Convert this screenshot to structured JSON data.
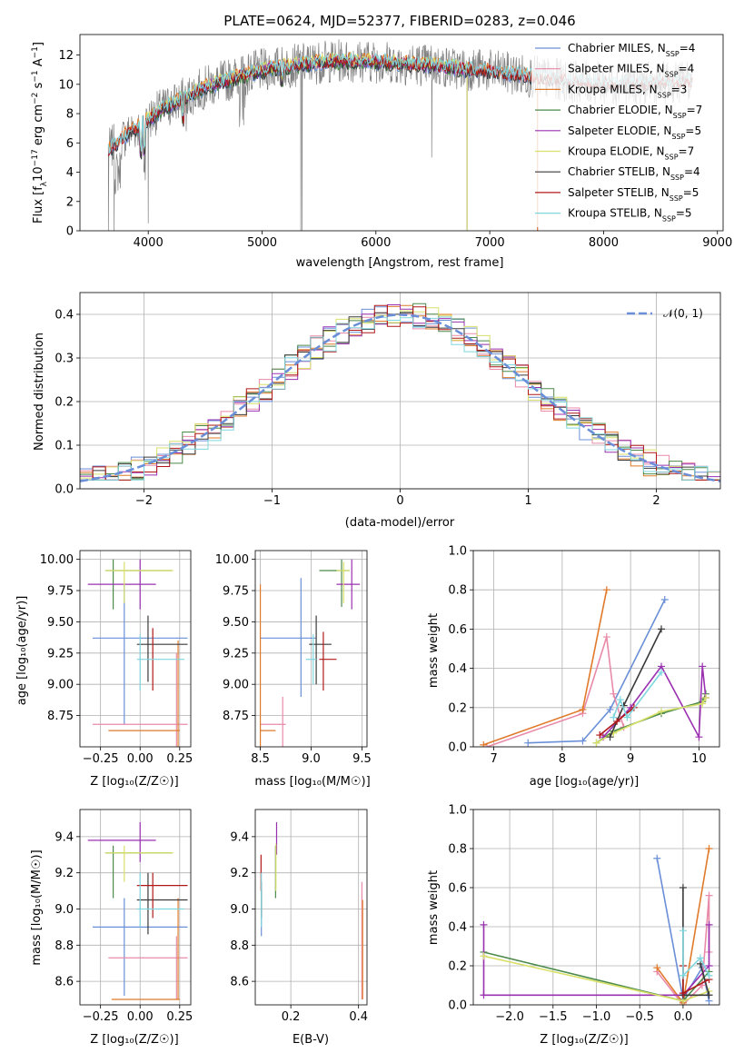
{
  "colors": {
    "Chabrier MILES": "#6a8fd8",
    "Salpeter MILES": "#e88aa8",
    "Kroupa MILES": "#e07a2a",
    "Chabrier ELODIE": "#4b8a4b",
    "Salpeter ELODIE": "#9a30b0",
    "Kroupa ELODIE": "#d8e06a",
    "Chabrier STELIB": "#3a3a3a",
    "Salpeter STELIB": "#b01818",
    "Kroupa STELIB": "#7fd6de",
    "data": "#808080"
  },
  "chart_data": [
    {
      "id": "spectrum",
      "type": "line",
      "title": "PLATE=0624, MJD=52377, FIBERID=0283, z=0.046",
      "xlabel": "wavelength [Angstrom, rest frame]",
      "ylabel": "Flux [f$_\\lambda$10$^{-17}$ erg cm$^{-2}$ s$^{-1}$ A$^{-1}$]",
      "ylabel_parts": [
        "Flux [f",
        "λ",
        "10",
        "−17",
        " erg cm",
        "−2",
        " s",
        "−1",
        " A",
        "−1",
        "]"
      ],
      "xlim": [
        3400,
        9050
      ],
      "ylim": [
        0,
        13.4
      ],
      "xticks": [
        4000,
        5000,
        6000,
        7000,
        8000,
        9000
      ],
      "yticks": [
        0,
        2,
        4,
        6,
        8,
        10,
        12
      ],
      "legend": [
        {
          "name": "Chabrier MILES",
          "n": "4"
        },
        {
          "name": "Salpeter MILES",
          "n": "4"
        },
        {
          "name": "Kroupa MILES",
          "n": "3"
        },
        {
          "name": "Chabrier ELODIE",
          "n": "7"
        },
        {
          "name": "Salpeter ELODIE",
          "n": "5"
        },
        {
          "name": "Kroupa ELODIE",
          "n": "7"
        },
        {
          "name": "Chabrier STELIB",
          "n": "4"
        },
        {
          "name": "Salpeter STELIB",
          "n": "5"
        },
        {
          "name": "Kroupa STELIB",
          "n": "5"
        }
      ],
      "legend_sub": "SSP",
      "continuum": {
        "x": [
          3650,
          3800,
          3950,
          4100,
          4300,
          4500,
          4700,
          4900,
          5100,
          5300,
          5500,
          5700,
          5900,
          6100,
          6300,
          6500,
          6700,
          6900,
          7100,
          7300,
          7500,
          7700,
          7900,
          8100,
          8300,
          8500,
          8780
        ],
        "y": [
          5.5,
          6.5,
          7.3,
          8.2,
          9.0,
          9.8,
          10.3,
          10.8,
          11.1,
          11.3,
          11.5,
          11.6,
          11.6,
          11.5,
          11.4,
          11.3,
          11.1,
          11.0,
          10.8,
          10.6,
          10.4,
          10.2,
          10.1,
          10.0,
          10.0,
          10.1,
          10.2
        ]
      },
      "model_ranges": {
        "Chabrier MILES": [
          3650,
          7420
        ],
        "Salpeter MILES": [
          3650,
          7420
        ],
        "Kroupa MILES": [
          3650,
          7420
        ],
        "Chabrier ELODIE": [
          3900,
          6800
        ],
        "Salpeter ELODIE": [
          3900,
          6800
        ],
        "Kroupa ELODIE": [
          3900,
          6800
        ],
        "Chabrier STELIB": [
          3650,
          8780
        ],
        "Salpeter STELIB": [
          3650,
          8780
        ],
        "Kroupa STELIB": [
          3650,
          8780
        ]
      }
    },
    {
      "id": "residuals",
      "type": "line",
      "xlabel": "(data-model)/error",
      "ylabel": "Normed distribution",
      "xlim": [
        -2.5,
        2.5
      ],
      "ylim": [
        0,
        0.45
      ],
      "xticks": [
        -2,
        -1,
        0,
        1,
        2
      ],
      "xticklabels": [
        "−2",
        "−1",
        "0",
        "1",
        "2"
      ],
      "yticks": [
        0.0,
        0.1,
        0.2,
        0.3,
        0.4
      ],
      "yticklabels": [
        "0.0",
        "0.1",
        "0.2",
        "0.3",
        "0.4"
      ],
      "legend_label": "𝒩(0, 1)",
      "reference": "normal(0,1)"
    },
    {
      "id": "age_vs_Z",
      "type": "scatter",
      "xlabel": "Z [log₁₀(Z/Z☉)]",
      "ylabel": "age  [log₁₀(age/yr)]",
      "xlim": [
        -0.38,
        0.32
      ],
      "ylim": [
        8.5,
        10.07
      ],
      "xticks": [
        -0.25,
        0.0,
        0.25
      ],
      "xticklabels": [
        "−0.25",
        "0.00",
        "0.25"
      ],
      "yticks": [
        8.75,
        9.0,
        9.25,
        9.5,
        9.75,
        10.0
      ],
      "yticklabels": [
        "8.75",
        "9.00",
        "9.25",
        "9.50",
        "9.75",
        "10.00"
      ],
      "points": [
        {
          "m": "Chabrier MILES",
          "x": -0.1,
          "xlo": -0.3,
          "xhi": 0.3,
          "y": 9.37,
          "ylo": 8.68,
          "yhi": 9.8
        },
        {
          "m": "Salpeter MILES",
          "x": 0.23,
          "xlo": -0.3,
          "xhi": 0.3,
          "y": 8.68,
          "ylo": 8.5,
          "yhi": 9.25
        },
        {
          "m": "Kroupa MILES",
          "x": 0.24,
          "xlo": -0.2,
          "xhi": 0.25,
          "y": 8.63,
          "ylo": 8.5,
          "yhi": 9.35
        },
        {
          "m": "Chabrier ELODIE",
          "x": -0.17,
          "xlo": -0.22,
          "xhi": 0.2,
          "y": 9.91,
          "ylo": 9.6,
          "yhi": 10.0
        },
        {
          "m": "Salpeter ELODIE",
          "x": 0.0,
          "xlo": -0.33,
          "xhi": 0.1,
          "y": 9.8,
          "ylo": 9.6,
          "yhi": 10.0
        },
        {
          "m": "Kroupa ELODIE",
          "x": -0.1,
          "xlo": -0.22,
          "xhi": 0.21,
          "y": 9.91,
          "ylo": 9.65,
          "yhi": 9.98
        },
        {
          "m": "Chabrier STELIB",
          "x": 0.05,
          "xlo": -0.02,
          "xhi": 0.3,
          "y": 9.32,
          "ylo": 9.02,
          "yhi": 9.55
        },
        {
          "m": "Salpeter STELIB",
          "x": 0.08,
          "xlo": 0.08,
          "xhi": 0.08,
          "y": 9.25,
          "ylo": 8.95,
          "yhi": 9.45
        },
        {
          "m": "Kroupa STELIB",
          "x": 0.0,
          "xlo": -0.02,
          "xhi": 0.28,
          "y": 9.2,
          "ylo": 8.95,
          "yhi": 9.4
        }
      ]
    },
    {
      "id": "age_vs_mass",
      "type": "scatter",
      "xlabel": "mass [log₁₀(M/M☉)]",
      "xlim": [
        8.45,
        9.55
      ],
      "ylim": [
        8.5,
        10.07
      ],
      "xticks": [
        8.5,
        9.0,
        9.5
      ],
      "xticklabels": [
        "8.5",
        "9.0",
        "9.5"
      ],
      "yticks": [
        8.75,
        9.0,
        9.25,
        9.5,
        9.75,
        10.0
      ],
      "yticklabels": [
        "8.75",
        "9.00",
        "9.25",
        "9.50",
        "9.75",
        "10.00"
      ],
      "points": [
        {
          "m": "Chabrier MILES",
          "x": 8.9,
          "xlo": 8.5,
          "xhi": 9.05,
          "y": 9.37,
          "ylo": 8.9,
          "yhi": 9.85
        },
        {
          "m": "Salpeter MILES",
          "x": 8.72,
          "xlo": 8.5,
          "xhi": 8.75,
          "y": 8.68,
          "ylo": 8.5,
          "yhi": 8.9
        },
        {
          "m": "Kroupa MILES",
          "x": 8.5,
          "xlo": 8.5,
          "xhi": 8.65,
          "y": 8.63,
          "ylo": 8.5,
          "yhi": 9.8
        },
        {
          "m": "Chabrier ELODIE",
          "x": 9.3,
          "xlo": 9.08,
          "xhi": 9.38,
          "y": 9.91,
          "ylo": 9.62,
          "yhi": 10.0
        },
        {
          "m": "Salpeter ELODIE",
          "x": 9.4,
          "xlo": 9.25,
          "xhi": 9.48,
          "y": 9.8,
          "ylo": 9.6,
          "yhi": 10.0
        },
        {
          "m": "Kroupa ELODIE",
          "x": 9.32,
          "xlo": 9.25,
          "xhi": 9.38,
          "y": 9.91,
          "ylo": 9.65,
          "yhi": 9.98
        },
        {
          "m": "Chabrier STELIB",
          "x": 9.05,
          "xlo": 8.98,
          "xhi": 9.2,
          "y": 9.32,
          "ylo": 9.0,
          "yhi": 9.55
        },
        {
          "m": "Salpeter STELIB",
          "x": 9.12,
          "xlo": 9.08,
          "xhi": 9.25,
          "y": 9.2,
          "ylo": 8.95,
          "yhi": 9.42
        },
        {
          "m": "Kroupa STELIB",
          "x": 9.02,
          "xlo": 8.95,
          "xhi": 9.05,
          "y": 9.2,
          "ylo": 9.0,
          "yhi": 9.4
        }
      ]
    },
    {
      "id": "weight_vs_age",
      "type": "line",
      "xlabel": "age  [log₁₀(age/yr)]",
      "ylabel": "mass weight",
      "xlim": [
        6.7,
        10.3
      ],
      "ylim": [
        0,
        1.0
      ],
      "xticks": [
        7,
        8,
        9,
        10
      ],
      "xticklabels": [
        "7",
        "8",
        "9",
        "10"
      ],
      "yticks": [
        0.0,
        0.2,
        0.4,
        0.6,
        0.8,
        1.0
      ],
      "yticklabels": [
        "0.0",
        "0.2",
        "0.4",
        "0.6",
        "0.8",
        "1.0"
      ],
      "series": [
        {
          "m": "Chabrier MILES",
          "x": [
            7.5,
            8.3,
            8.7,
            9.5
          ],
          "y": [
            0.02,
            0.03,
            0.19,
            0.75
          ]
        },
        {
          "m": "Salpeter MILES",
          "x": [
            6.9,
            8.3,
            8.65,
            8.75,
            8.9
          ],
          "y": [
            0.0,
            0.17,
            0.56,
            0.27,
            0.1
          ]
        },
        {
          "m": "Kroupa MILES",
          "x": [
            6.85,
            8.3,
            8.65
          ],
          "y": [
            0.01,
            0.19,
            0.8
          ]
        },
        {
          "m": "Chabrier ELODIE",
          "x": [
            8.5,
            8.75,
            9.45,
            10.05,
            10.1
          ],
          "y": [
            0.02,
            0.08,
            0.17,
            0.23,
            0.27
          ]
        },
        {
          "m": "Salpeter ELODIE",
          "x": [
            8.6,
            9.0,
            9.45,
            10.0,
            10.05,
            10.1
          ],
          "y": [
            0.05,
            0.2,
            0.41,
            0.05,
            0.41,
            0.25
          ]
        },
        {
          "m": "Kroupa ELODIE",
          "x": [
            8.5,
            8.75,
            9.45,
            10.05,
            10.1
          ],
          "y": [
            0.02,
            0.07,
            0.18,
            0.22,
            0.25
          ]
        },
        {
          "m": "Chabrier STELIB",
          "x": [
            8.7,
            8.9,
            9.45
          ],
          "y": [
            0.05,
            0.21,
            0.6
          ]
        },
        {
          "m": "Salpeter STELIB",
          "x": [
            8.55,
            8.8,
            9.05
          ],
          "y": [
            0.06,
            0.13,
            0.2
          ]
        },
        {
          "m": "Kroupa STELIB",
          "x": [
            8.75,
            8.85,
            8.95,
            9.45
          ],
          "y": [
            0.15,
            0.24,
            0.15,
            0.38
          ]
        }
      ]
    },
    {
      "id": "mass_vs_Z",
      "type": "scatter",
      "xlabel": "Z [log₁₀(Z/Z☉)]",
      "ylabel": "mass [log₁₀(M/M☉)]",
      "xlim": [
        -0.38,
        0.32
      ],
      "ylim": [
        8.47,
        9.55
      ],
      "xticks": [
        -0.25,
        0.0,
        0.25
      ],
      "xticklabels": [
        "−0.25",
        "0.00",
        "0.25"
      ],
      "yticks": [
        8.6,
        8.8,
        9.0,
        9.2,
        9.4
      ],
      "yticklabels": [
        "8.6",
        "8.8",
        "9.0",
        "9.2",
        "9.4"
      ],
      "points": [
        {
          "m": "Chabrier MILES",
          "x": -0.1,
          "xlo": -0.3,
          "xhi": 0.3,
          "y": 8.9,
          "ylo": 8.52,
          "yhi": 9.06
        },
        {
          "m": "Salpeter MILES",
          "x": 0.23,
          "xlo": -0.2,
          "xhi": 0.3,
          "y": 8.73,
          "ylo": 8.5,
          "yhi": 8.85
        },
        {
          "m": "Kroupa MILES",
          "x": 0.24,
          "xlo": -0.18,
          "xhi": 0.25,
          "y": 8.5,
          "ylo": 8.5,
          "yhi": 9.06
        },
        {
          "m": "Chabrier ELODIE",
          "x": -0.17,
          "xlo": -0.22,
          "xhi": 0.2,
          "y": 9.31,
          "ylo": 9.06,
          "yhi": 9.35
        },
        {
          "m": "Salpeter ELODIE",
          "x": 0.0,
          "xlo": -0.33,
          "xhi": 0.1,
          "y": 9.38,
          "ylo": 9.26,
          "yhi": 9.48
        },
        {
          "m": "Kroupa ELODIE",
          "x": -0.1,
          "xlo": -0.22,
          "xhi": 0.21,
          "y": 9.31,
          "ylo": 9.15,
          "yhi": 9.35
        },
        {
          "m": "Chabrier STELIB",
          "x": 0.05,
          "xlo": -0.02,
          "xhi": 0.3,
          "y": 9.05,
          "ylo": 8.86,
          "yhi": 9.2
        },
        {
          "m": "Salpeter STELIB",
          "x": 0.08,
          "xlo": -0.02,
          "xhi": 0.3,
          "y": 9.13,
          "ylo": 8.95,
          "yhi": 9.2
        },
        {
          "m": "Kroupa STELIB",
          "x": 0.0,
          "xlo": -0.02,
          "xhi": 0.28,
          "y": 9.0,
          "ylo": 8.9,
          "yhi": 9.2
        }
      ]
    },
    {
      "id": "mass_vs_ebv",
      "type": "scatter",
      "xlabel": "E(B-V)",
      "xlim": [
        0.095,
        0.425
      ],
      "ylim": [
        8.47,
        9.55
      ],
      "xticks": [
        0.2,
        0.4
      ],
      "xticklabels": [
        "0.2",
        "0.4"
      ],
      "yticks": [
        8.6,
        8.8,
        9.0,
        9.2,
        9.4
      ],
      "yticklabels": [
        "8.6",
        "8.8",
        "9.0",
        "9.2",
        "9.4"
      ],
      "points": [
        {
          "m": "Chabrier MILES",
          "x": 0.113,
          "y": 8.9,
          "ylo": 8.85,
          "yhi": 9.1
        },
        {
          "m": "Salpeter MILES",
          "x": 0.41,
          "y": 8.73,
          "ylo": 8.5,
          "yhi": 9.15
        },
        {
          "m": "Kroupa MILES",
          "x": 0.412,
          "y": 8.5,
          "ylo": 8.5,
          "yhi": 9.05
        },
        {
          "m": "Chabrier ELODIE",
          "x": 0.155,
          "y": 9.31,
          "ylo": 9.06,
          "yhi": 9.35
        },
        {
          "m": "Salpeter ELODIE",
          "x": 0.158,
          "y": 9.38,
          "ylo": 9.3,
          "yhi": 9.48
        },
        {
          "m": "Kroupa ELODIE",
          "x": 0.156,
          "y": 9.31,
          "ylo": 9.1,
          "yhi": 9.36
        },
        {
          "m": "Chabrier STELIB",
          "x": 0.113,
          "y": 9.05,
          "ylo": 8.95,
          "yhi": 9.15
        },
        {
          "m": "Salpeter STELIB",
          "x": 0.112,
          "y": 9.13,
          "ylo": 9.1,
          "yhi": 9.3
        },
        {
          "m": "Kroupa STELIB",
          "x": 0.113,
          "y": 9.0,
          "ylo": 8.9,
          "yhi": 9.2
        }
      ]
    },
    {
      "id": "weight_vs_Z",
      "type": "line",
      "xlabel": "Z [log₁₀(Z/Z☉)]",
      "ylabel": "mass weight",
      "xlim": [
        -2.42,
        0.42
      ],
      "ylim": [
        0,
        1.0
      ],
      "xticks": [
        -2.0,
        -1.5,
        -1.0,
        -0.5,
        0.0
      ],
      "xticklabels": [
        "−2.0",
        "−1.5",
        "−1.0",
        "−0.5",
        "0.0"
      ],
      "yticks": [
        0.0,
        0.2,
        0.4,
        0.6,
        0.8,
        1.0
      ],
      "yticklabels": [
        "0.0",
        "0.2",
        "0.4",
        "0.6",
        "0.8",
        "1.0"
      ],
      "series": [
        {
          "m": "Chabrier MILES",
          "x": [
            -0.3,
            0.0,
            0.22,
            0.3
          ],
          "y": [
            0.75,
            0.03,
            0.19,
            0.02
          ]
        },
        {
          "m": "Salpeter MILES",
          "x": [
            -0.3,
            0.0,
            0.22,
            0.3,
            0.3
          ],
          "y": [
            0.17,
            0.0,
            0.1,
            0.56,
            0.27
          ]
        },
        {
          "m": "Kroupa MILES",
          "x": [
            -0.3,
            0.0,
            0.3
          ],
          "y": [
            0.19,
            0.01,
            0.8
          ]
        },
        {
          "m": "Chabrier ELODIE",
          "x": [
            -2.3,
            0.0,
            0.3
          ],
          "y": [
            0.27,
            0.02,
            0.17
          ]
        },
        {
          "m": "Salpeter ELODIE",
          "x": [
            -2.3,
            -2.3,
            0.0,
            0.3,
            0.3
          ],
          "y": [
            0.41,
            0.05,
            0.05,
            0.2,
            0.41
          ]
        },
        {
          "m": "Kroupa ELODIE",
          "x": [
            -2.3,
            0.0,
            0.3
          ],
          "y": [
            0.25,
            0.02,
            0.07
          ]
        },
        {
          "m": "Chabrier STELIB",
          "x": [
            0.0,
            0.0,
            0.3,
            0.2
          ],
          "y": [
            0.6,
            0.05,
            0.05,
            0.21
          ]
        },
        {
          "m": "Salpeter STELIB",
          "x": [
            0.0,
            0.0,
            0.3
          ],
          "y": [
            0.2,
            0.06,
            0.13
          ]
        },
        {
          "m": "Kroupa STELIB",
          "x": [
            0.0,
            0.0,
            0.2,
            0.3
          ],
          "y": [
            0.38,
            0.15,
            0.24,
            0.15
          ]
        }
      ]
    }
  ]
}
